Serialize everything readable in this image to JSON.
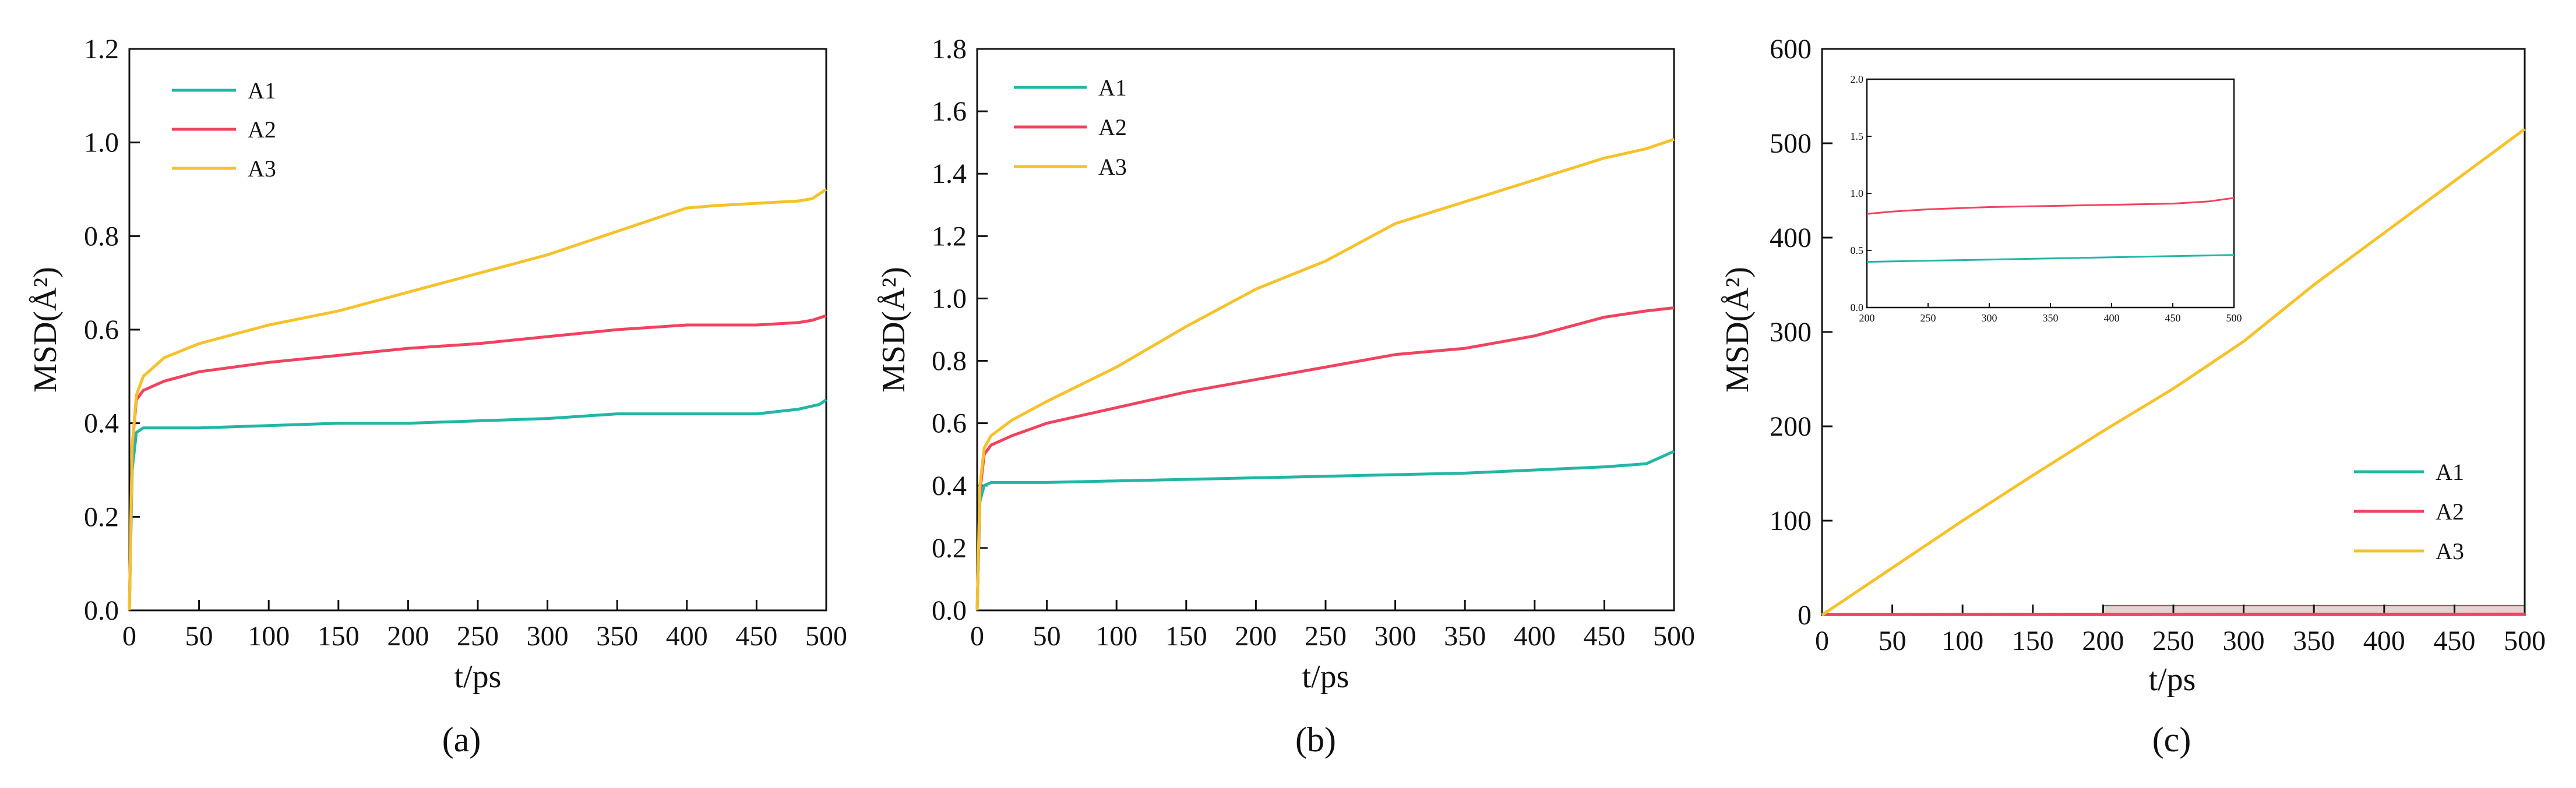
{
  "figure": {
    "panels": [
      "(a)",
      "(b)",
      "(c)"
    ]
  },
  "colors": {
    "A1": "#22b6a6",
    "A2": "#f0435f",
    "A3": "#f5c22b",
    "axis": "#111111",
    "highlight": "#d9b3b6"
  },
  "chart_data": [
    {
      "type": "line",
      "panel": "(a)",
      "title": "",
      "xlabel": "t/ps",
      "ylabel": "MSD(Å²)",
      "xlim": [
        0,
        500
      ],
      "ylim": [
        0,
        1.2
      ],
      "xticks": [
        0,
        50,
        100,
        150,
        200,
        250,
        300,
        350,
        400,
        450,
        500
      ],
      "yticks": [
        0.0,
        0.2,
        0.4,
        0.6,
        0.8,
        1.0,
        1.2
      ],
      "ytick_labels": [
        "0.0",
        "0.2",
        "0.4",
        "0.6",
        "0.8",
        "1.0",
        "1.2"
      ],
      "legend_position": "top-left",
      "series": [
        {
          "name": "A1",
          "x": [
            0,
            2,
            5,
            10,
            50,
            100,
            150,
            200,
            250,
            300,
            350,
            400,
            450,
            480,
            495,
            500
          ],
          "y": [
            0,
            0.3,
            0.38,
            0.39,
            0.39,
            0.395,
            0.4,
            0.4,
            0.405,
            0.41,
            0.42,
            0.42,
            0.42,
            0.43,
            0.44,
            0.45
          ]
        },
        {
          "name": "A2",
          "x": [
            0,
            2,
            5,
            10,
            25,
            50,
            100,
            150,
            200,
            250,
            300,
            350,
            400,
            450,
            480,
            490,
            500
          ],
          "y": [
            0,
            0.35,
            0.45,
            0.47,
            0.49,
            0.51,
            0.53,
            0.545,
            0.56,
            0.57,
            0.585,
            0.6,
            0.61,
            0.61,
            0.615,
            0.62,
            0.63
          ]
        },
        {
          "name": "A3",
          "x": [
            0,
            2,
            5,
            10,
            25,
            50,
            100,
            150,
            200,
            250,
            300,
            350,
            400,
            420,
            450,
            480,
            490,
            500
          ],
          "y": [
            0,
            0.35,
            0.46,
            0.5,
            0.54,
            0.57,
            0.61,
            0.64,
            0.68,
            0.72,
            0.76,
            0.81,
            0.86,
            0.865,
            0.87,
            0.875,
            0.88,
            0.9
          ]
        }
      ]
    },
    {
      "type": "line",
      "panel": "(b)",
      "title": "",
      "xlabel": "t/ps",
      "ylabel": "MSD(Å²)",
      "xlim": [
        0,
        500
      ],
      "ylim": [
        0,
        1.8
      ],
      "xticks": [
        0,
        50,
        100,
        150,
        200,
        250,
        300,
        350,
        400,
        450,
        500
      ],
      "yticks": [
        0.0,
        0.2,
        0.4,
        0.6,
        0.8,
        1.0,
        1.2,
        1.4,
        1.6,
        1.8
      ],
      "ytick_labels": [
        "0.0",
        "0.2",
        "0.4",
        "0.6",
        "0.8",
        "1.0",
        "1.2",
        "1.4",
        "1.6",
        "1.8"
      ],
      "legend_position": "top-left",
      "series": [
        {
          "name": "A1",
          "x": [
            0,
            2,
            5,
            10,
            50,
            100,
            150,
            200,
            250,
            300,
            350,
            400,
            450,
            480,
            500
          ],
          "y": [
            0,
            0.35,
            0.4,
            0.41,
            0.41,
            0.415,
            0.42,
            0.425,
            0.43,
            0.435,
            0.44,
            0.45,
            0.46,
            0.47,
            0.51
          ]
        },
        {
          "name": "A2",
          "x": [
            0,
            2,
            5,
            10,
            25,
            50,
            100,
            150,
            200,
            250,
            300,
            350,
            400,
            450,
            480,
            500
          ],
          "y": [
            0,
            0.38,
            0.5,
            0.53,
            0.56,
            0.6,
            0.65,
            0.7,
            0.74,
            0.78,
            0.82,
            0.84,
            0.88,
            0.94,
            0.96,
            0.97
          ]
        },
        {
          "name": "A3",
          "x": [
            0,
            2,
            5,
            10,
            25,
            50,
            100,
            150,
            200,
            250,
            300,
            350,
            400,
            450,
            480,
            500
          ],
          "y": [
            0,
            0.4,
            0.52,
            0.56,
            0.61,
            0.67,
            0.78,
            0.91,
            1.03,
            1.12,
            1.24,
            1.31,
            1.38,
            1.45,
            1.48,
            1.51
          ]
        }
      ]
    },
    {
      "type": "line",
      "panel": "(c)",
      "title": "",
      "xlabel": "t/ps",
      "ylabel": "MSD(Å²)",
      "xlim": [
        0,
        500
      ],
      "ylim": [
        0,
        600
      ],
      "xticks": [
        0,
        50,
        100,
        150,
        200,
        250,
        300,
        350,
        400,
        450,
        500
      ],
      "yticks": [
        0,
        100,
        200,
        300,
        400,
        500,
        600
      ],
      "ytick_labels": [
        "0",
        "100",
        "200",
        "300",
        "400",
        "500",
        "600"
      ],
      "legend_position": "bottom-right",
      "highlight_region": {
        "x": [
          200,
          500
        ],
        "y": [
          0,
          10
        ]
      },
      "series": [
        {
          "name": "A1",
          "x": [
            0,
            200,
            500
          ],
          "y": [
            0.4,
            0.4,
            0.45
          ]
        },
        {
          "name": "A2",
          "x": [
            0,
            200,
            500
          ],
          "y": [
            0.6,
            0.85,
            1.0
          ]
        },
        {
          "name": "A3",
          "x": [
            0,
            50,
            100,
            150,
            200,
            250,
            300,
            350,
            400,
            450,
            500
          ],
          "y": [
            0,
            50,
            100,
            148,
            195,
            240,
            290,
            350,
            405,
            460,
            515
          ]
        }
      ],
      "inset": {
        "xlim": [
          200,
          500
        ],
        "ylim": [
          0,
          2.0
        ],
        "xticks": [
          200,
          250,
          300,
          350,
          400,
          450,
          500
        ],
        "yticks": [
          0.0,
          0.5,
          1.0,
          1.5,
          2.0
        ],
        "ytick_labels": [
          "0.0",
          "0.5",
          "1.0",
          "1.5",
          "2.0"
        ],
        "series": [
          {
            "name": "A1",
            "x": [
              200,
              250,
              300,
              350,
              400,
              450,
              500
            ],
            "y": [
              0.4,
              0.41,
              0.42,
              0.43,
              0.44,
              0.45,
              0.46
            ]
          },
          {
            "name": "A2",
            "x": [
              200,
              220,
              250,
              300,
              350,
              400,
              450,
              480,
              500
            ],
            "y": [
              0.82,
              0.84,
              0.86,
              0.88,
              0.89,
              0.9,
              0.91,
              0.93,
              0.96
            ]
          }
        ]
      }
    }
  ]
}
